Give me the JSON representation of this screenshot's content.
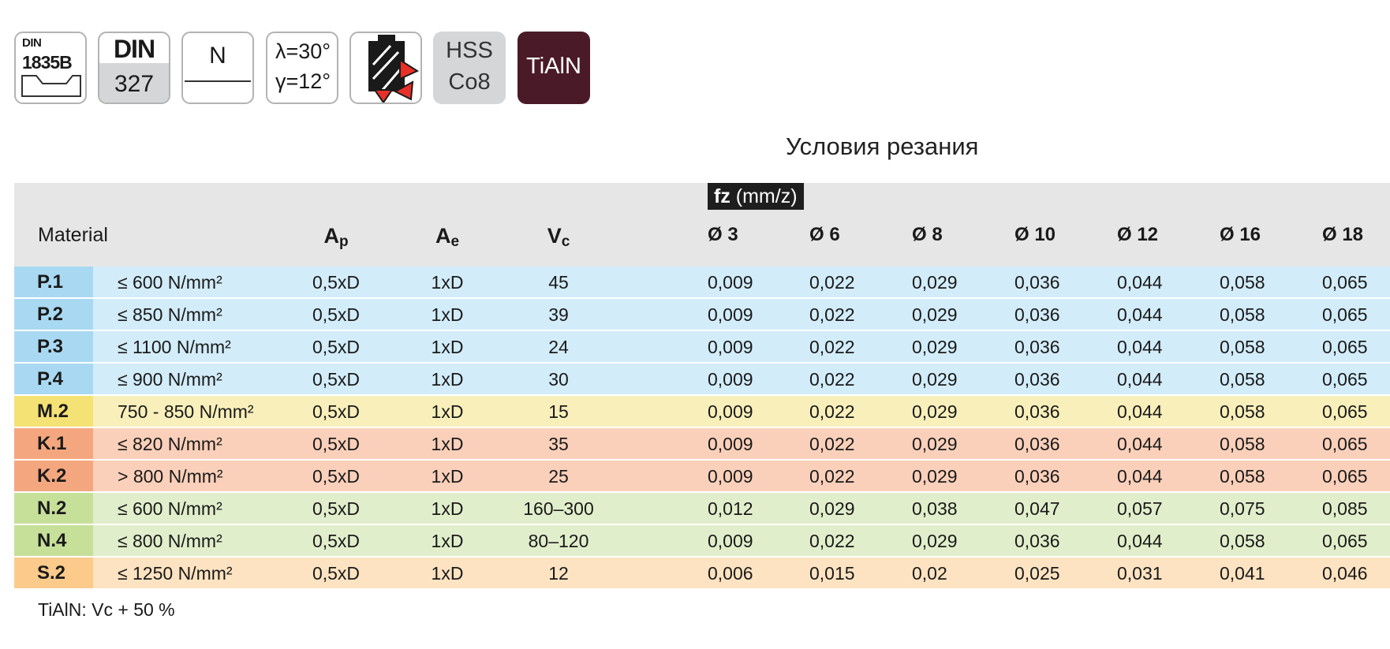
{
  "badges": {
    "din1835b": {
      "line1": "DIN",
      "line2": "1835B"
    },
    "din327": {
      "top": "DIN",
      "bottom": "327"
    },
    "type": "N",
    "angles": {
      "lambda": "λ=30°",
      "gamma": "γ=12°"
    },
    "hss": {
      "line1": "HSS",
      "line2": "Co8"
    },
    "coating": "TiAlN"
  },
  "title": "Условия резания",
  "fz_label": {
    "bold": "fz",
    "unit": "(mm/z)"
  },
  "headers": {
    "material": "Material",
    "ap": {
      "main": "A",
      "sub": "p"
    },
    "ae": {
      "main": "A",
      "sub": "e"
    },
    "vc": {
      "main": "V",
      "sub": "c"
    },
    "diameters": [
      "Ø 3",
      "Ø 6",
      "Ø 8",
      "Ø 10",
      "Ø 12",
      "Ø 16",
      "Ø 18"
    ]
  },
  "rows": [
    {
      "code": "P.1",
      "strength": "≤ 600 N/mm²",
      "ap": "0,5xD",
      "ae": "1xD",
      "vc": "45",
      "fz": [
        "0,009",
        "0,022",
        "0,029",
        "0,036",
        "0,044",
        "0,058",
        "0,065"
      ]
    },
    {
      "code": "P.2",
      "strength": "≤ 850 N/mm²",
      "ap": "0,5xD",
      "ae": "1xD",
      "vc": "39",
      "fz": [
        "0,009",
        "0,022",
        "0,029",
        "0,036",
        "0,044",
        "0,058",
        "0,065"
      ]
    },
    {
      "code": "P.3",
      "strength": "≤ 1100 N/mm²",
      "ap": "0,5xD",
      "ae": "1xD",
      "vc": "24",
      "fz": [
        "0,009",
        "0,022",
        "0,029",
        "0,036",
        "0,044",
        "0,058",
        "0,065"
      ]
    },
    {
      "code": "P.4",
      "strength": "≤ 900 N/mm²",
      "ap": "0,5xD",
      "ae": "1xD",
      "vc": "30",
      "fz": [
        "0,009",
        "0,022",
        "0,029",
        "0,036",
        "0,044",
        "0,058",
        "0,065"
      ]
    },
    {
      "code": "M.2",
      "strength": "750 - 850 N/mm²",
      "ap": "0,5xD",
      "ae": "1xD",
      "vc": "15",
      "fz": [
        "0,009",
        "0,022",
        "0,029",
        "0,036",
        "0,044",
        "0,058",
        "0,065"
      ]
    },
    {
      "code": "K.1",
      "strength": "≤ 820 N/mm²",
      "ap": "0,5xD",
      "ae": "1xD",
      "vc": "35",
      "fz": [
        "0,009",
        "0,022",
        "0,029",
        "0,036",
        "0,044",
        "0,058",
        "0,065"
      ]
    },
    {
      "code": "K.2",
      "strength": "> 800 N/mm²",
      "ap": "0,5xD",
      "ae": "1xD",
      "vc": "25",
      "fz": [
        "0,009",
        "0,022",
        "0,029",
        "0,036",
        "0,044",
        "0,058",
        "0,065"
      ]
    },
    {
      "code": "N.2",
      "strength": "≤ 600 N/mm²",
      "ap": "0,5xD",
      "ae": "1xD",
      "vc": "160–300",
      "fz": [
        "0,012",
        "0,029",
        "0,038",
        "0,047",
        "0,057",
        "0,075",
        "0,085"
      ]
    },
    {
      "code": "N.4",
      "strength": "≤ 800 N/mm²",
      "ap": "0,5xD",
      "ae": "1xD",
      "vc": "80–120",
      "fz": [
        "0,009",
        "0,022",
        "0,029",
        "0,036",
        "0,044",
        "0,058",
        "0,065"
      ]
    },
    {
      "code": "S.2",
      "strength": "≤ 1250 N/mm²",
      "ap": "0,5xD",
      "ae": "1xD",
      "vc": "12",
      "fz": [
        "0,006",
        "0,015",
        "0,02",
        "0,025",
        "0,031",
        "0,041",
        "0,046"
      ]
    }
  ],
  "footnote": "TiAlN: Vc + 50 %"
}
